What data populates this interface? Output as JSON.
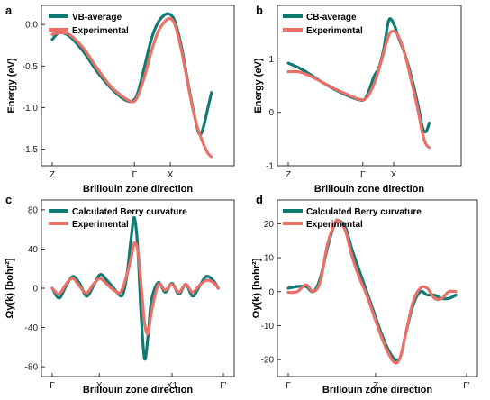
{
  "colors": {
    "teal": "#0f7a72",
    "salmon": "#ea7068"
  },
  "chart_data": [
    {
      "panel_label": "a",
      "type": "line",
      "xlabel": "Brillouin zone direction",
      "ylabel": "Energy (eV)",
      "xlim": [
        0,
        1
      ],
      "ylim": [
        -1.7,
        0.23
      ],
      "xticks": [
        {
          "v": 0.0,
          "label": "Z"
        },
        {
          "v": 0.48,
          "label": "Γ"
        },
        {
          "v": 0.69,
          "label": "X"
        }
      ],
      "yticks": [
        {
          "v": 0.0,
          "label": "0.0"
        },
        {
          "v": -0.5,
          "label": "-0.5"
        },
        {
          "v": -1.0,
          "label": "-1.0"
        },
        {
          "v": -1.5,
          "label": "-1.5"
        }
      ],
      "legend": "top-left",
      "series": [
        {
          "name": "VB-average",
          "color": "#0f7a72",
          "points": [
            [
              0,
              -0.18
            ],
            [
              0.04,
              -0.1
            ],
            [
              0.1,
              -0.14
            ],
            [
              0.18,
              -0.32
            ],
            [
              0.26,
              -0.56
            ],
            [
              0.34,
              -0.76
            ],
            [
              0.42,
              -0.9
            ],
            [
              0.47,
              -0.92
            ],
            [
              0.5,
              -0.82
            ],
            [
              0.54,
              -0.5
            ],
            [
              0.58,
              -0.17
            ],
            [
              0.62,
              0.03
            ],
            [
              0.66,
              0.12
            ],
            [
              0.69,
              0.12
            ],
            [
              0.72,
              0.02
            ],
            [
              0.76,
              -0.32
            ],
            [
              0.8,
              -0.78
            ],
            [
              0.84,
              -1.18
            ],
            [
              0.86,
              -1.32
            ],
            [
              0.88,
              -1.26
            ],
            [
              0.91,
              -1.0
            ],
            [
              0.93,
              -0.82
            ]
          ]
        },
        {
          "name": "Experimental",
          "color": "#ea7068",
          "points": [
            [
              0,
              -0.12
            ],
            [
              0.04,
              -0.1
            ],
            [
              0.1,
              -0.12
            ],
            [
              0.18,
              -0.28
            ],
            [
              0.26,
              -0.52
            ],
            [
              0.34,
              -0.74
            ],
            [
              0.42,
              -0.88
            ],
            [
              0.47,
              -0.93
            ],
            [
              0.5,
              -0.86
            ],
            [
              0.54,
              -0.62
            ],
            [
              0.58,
              -0.32
            ],
            [
              0.62,
              -0.08
            ],
            [
              0.66,
              0.04
            ],
            [
              0.69,
              0.07
            ],
            [
              0.72,
              -0.02
            ],
            [
              0.76,
              -0.36
            ],
            [
              0.8,
              -0.8
            ],
            [
              0.84,
              -1.18
            ],
            [
              0.88,
              -1.42
            ],
            [
              0.91,
              -1.55
            ],
            [
              0.93,
              -1.59
            ]
          ]
        }
      ]
    },
    {
      "panel_label": "b",
      "type": "line",
      "xlabel": "Brillouin zone direction",
      "ylabel": "Energy (eV)",
      "xlim": [
        0,
        1
      ],
      "ylim": [
        -1,
        2.0
      ],
      "xticks": [
        {
          "v": 0.0,
          "label": "Z"
        },
        {
          "v": 0.46,
          "label": "Γ"
        },
        {
          "v": 0.65,
          "label": "X"
        }
      ],
      "yticks": [
        {
          "v": 1,
          "label": "1"
        },
        {
          "v": 0,
          "label": "0"
        },
        {
          "v": -1,
          "label": "-1"
        }
      ],
      "legend": "top-left",
      "series": [
        {
          "name": "CB-average",
          "color": "#0f7a72",
          "points": [
            [
              0,
              0.92
            ],
            [
              0.06,
              0.84
            ],
            [
              0.12,
              0.74
            ],
            [
              0.2,
              0.58
            ],
            [
              0.28,
              0.44
            ],
            [
              0.36,
              0.32
            ],
            [
              0.43,
              0.24
            ],
            [
              0.47,
              0.24
            ],
            [
              0.5,
              0.42
            ],
            [
              0.53,
              0.68
            ],
            [
              0.56,
              0.84
            ],
            [
              0.59,
              1.2
            ],
            [
              0.62,
              1.72
            ],
            [
              0.65,
              1.66
            ],
            [
              0.68,
              1.4
            ],
            [
              0.72,
              1.08
            ],
            [
              0.76,
              0.66
            ],
            [
              0.8,
              0.14
            ],
            [
              0.83,
              -0.3
            ],
            [
              0.85,
              -0.36
            ],
            [
              0.87,
              -0.2
            ]
          ]
        },
        {
          "name": "Experimental",
          "color": "#ea7068",
          "points": [
            [
              0,
              0.76
            ],
            [
              0.06,
              0.76
            ],
            [
              0.12,
              0.7
            ],
            [
              0.2,
              0.58
            ],
            [
              0.28,
              0.45
            ],
            [
              0.36,
              0.34
            ],
            [
              0.43,
              0.25
            ],
            [
              0.47,
              0.24
            ],
            [
              0.5,
              0.34
            ],
            [
              0.54,
              0.62
            ],
            [
              0.58,
              1.02
            ],
            [
              0.62,
              1.44
            ],
            [
              0.65,
              1.52
            ],
            [
              0.68,
              1.42
            ],
            [
              0.72,
              1.08
            ],
            [
              0.76,
              0.58
            ],
            [
              0.8,
              0.04
            ],
            [
              0.83,
              -0.42
            ],
            [
              0.85,
              -0.6
            ],
            [
              0.87,
              -0.66
            ]
          ]
        }
      ]
    },
    {
      "panel_label": "c",
      "type": "line",
      "xlabel": "Brillouin zone direction",
      "ylabel": "Ωy(k) [bohr²]",
      "xlim": [
        0,
        1
      ],
      "ylim": [
        -90,
        90
      ],
      "xticks": [
        {
          "v": 0.0,
          "label": "Γ"
        },
        {
          "v": 0.275,
          "label": "X"
        },
        {
          "v": 0.7,
          "label": "X1"
        },
        {
          "v": 1.0,
          "label": "Γ'"
        }
      ],
      "yticks": [
        {
          "v": 80,
          "label": "80"
        },
        {
          "v": 40,
          "label": "40"
        },
        {
          "v": 0,
          "label": "0"
        },
        {
          "v": -40,
          "label": "-40"
        },
        {
          "v": -80,
          "label": "-80"
        }
      ],
      "legend": "top-left",
      "series": [
        {
          "name": "Calculated Berry curvature",
          "color": "#0f7a72",
          "points": [
            [
              0,
              0
            ],
            [
              0.04,
              -10
            ],
            [
              0.08,
              2
            ],
            [
              0.12,
              12
            ],
            [
              0.16,
              5
            ],
            [
              0.2,
              -8
            ],
            [
              0.24,
              2
            ],
            [
              0.28,
              14
            ],
            [
              0.32,
              8
            ],
            [
              0.36,
              0
            ],
            [
              0.4,
              -8
            ],
            [
              0.42,
              -2
            ],
            [
              0.44,
              18
            ],
            [
              0.46,
              50
            ],
            [
              0.48,
              72
            ],
            [
              0.5,
              40
            ],
            [
              0.52,
              -30
            ],
            [
              0.54,
              -72
            ],
            [
              0.56,
              -48
            ],
            [
              0.58,
              -12
            ],
            [
              0.62,
              6
            ],
            [
              0.66,
              -4
            ],
            [
              0.7,
              5
            ],
            [
              0.74,
              -6
            ],
            [
              0.78,
              4
            ],
            [
              0.82,
              -8
            ],
            [
              0.86,
              2
            ],
            [
              0.9,
              12
            ],
            [
              0.94,
              8
            ],
            [
              0.97,
              0
            ]
          ]
        },
        {
          "name": "Experimental",
          "color": "#ea7068",
          "points": [
            [
              0,
              0
            ],
            [
              0.04,
              -6
            ],
            [
              0.08,
              4
            ],
            [
              0.12,
              10
            ],
            [
              0.16,
              2
            ],
            [
              0.2,
              -5
            ],
            [
              0.24,
              4
            ],
            [
              0.28,
              10
            ],
            [
              0.32,
              4
            ],
            [
              0.36,
              -2
            ],
            [
              0.4,
              -4
            ],
            [
              0.43,
              10
            ],
            [
              0.46,
              30
            ],
            [
              0.48,
              46
            ],
            [
              0.5,
              38
            ],
            [
              0.52,
              2
            ],
            [
              0.54,
              -36
            ],
            [
              0.56,
              -46
            ],
            [
              0.58,
              -24
            ],
            [
              0.62,
              4
            ],
            [
              0.66,
              -2
            ],
            [
              0.7,
              4
            ],
            [
              0.74,
              -4
            ],
            [
              0.78,
              4
            ],
            [
              0.82,
              -4
            ],
            [
              0.86,
              3
            ],
            [
              0.9,
              8
            ],
            [
              0.94,
              6
            ],
            [
              0.97,
              0
            ]
          ]
        }
      ]
    },
    {
      "panel_label": "d",
      "type": "line",
      "xlabel": "Brillouin zone direction",
      "ylabel": "Ωy(k) [bohr²]",
      "xlim": [
        0,
        1
      ],
      "ylim": [
        -25,
        27
      ],
      "xticks": [
        {
          "v": 0.0,
          "label": "Γ"
        },
        {
          "v": 0.49,
          "label": "Z"
        },
        {
          "v": 1.0,
          "label": "Γ'"
        }
      ],
      "yticks": [
        {
          "v": 20,
          "label": "20"
        },
        {
          "v": 10,
          "label": "10"
        },
        {
          "v": 0,
          "label": "0"
        },
        {
          "v": -10,
          "label": "-10"
        },
        {
          "v": -20,
          "label": "-20"
        }
      ],
      "legend": "top-left",
      "series": [
        {
          "name": "Calculated Berry curvature",
          "color": "#0f7a72",
          "points": [
            [
              0,
              1
            ],
            [
              0.05,
              1.5
            ],
            [
              0.1,
              1.5
            ],
            [
              0.14,
              0
            ],
            [
              0.18,
              4
            ],
            [
              0.22,
              13
            ],
            [
              0.26,
              20
            ],
            [
              0.28,
              21
            ],
            [
              0.32,
              19
            ],
            [
              0.36,
              12
            ],
            [
              0.4,
              6
            ],
            [
              0.44,
              0
            ],
            [
              0.48,
              -6
            ],
            [
              0.52,
              -12
            ],
            [
              0.56,
              -17
            ],
            [
              0.6,
              -20
            ],
            [
              0.63,
              -19
            ],
            [
              0.66,
              -12
            ],
            [
              0.7,
              -4
            ],
            [
              0.74,
              0
            ],
            [
              0.78,
              -1
            ],
            [
              0.82,
              -1
            ],
            [
              0.86,
              -2
            ],
            [
              0.9,
              -2
            ],
            [
              0.94,
              -1
            ]
          ]
        },
        {
          "name": "Experimental",
          "color": "#ea7068",
          "points": [
            [
              0,
              -0.2
            ],
            [
              0.05,
              0
            ],
            [
              0.1,
              2
            ],
            [
              0.14,
              0
            ],
            [
              0.18,
              3
            ],
            [
              0.22,
              14
            ],
            [
              0.26,
              20
            ],
            [
              0.28,
              21
            ],
            [
              0.32,
              18
            ],
            [
              0.36,
              10
            ],
            [
              0.4,
              4
            ],
            [
              0.44,
              -1
            ],
            [
              0.48,
              -7
            ],
            [
              0.52,
              -13
            ],
            [
              0.56,
              -18
            ],
            [
              0.6,
              -21
            ],
            [
              0.63,
              -19
            ],
            [
              0.66,
              -12
            ],
            [
              0.7,
              -3
            ],
            [
              0.74,
              1
            ],
            [
              0.78,
              1
            ],
            [
              0.82,
              -2
            ],
            [
              0.86,
              -2
            ],
            [
              0.9,
              0
            ],
            [
              0.94,
              0
            ]
          ]
        }
      ]
    }
  ]
}
